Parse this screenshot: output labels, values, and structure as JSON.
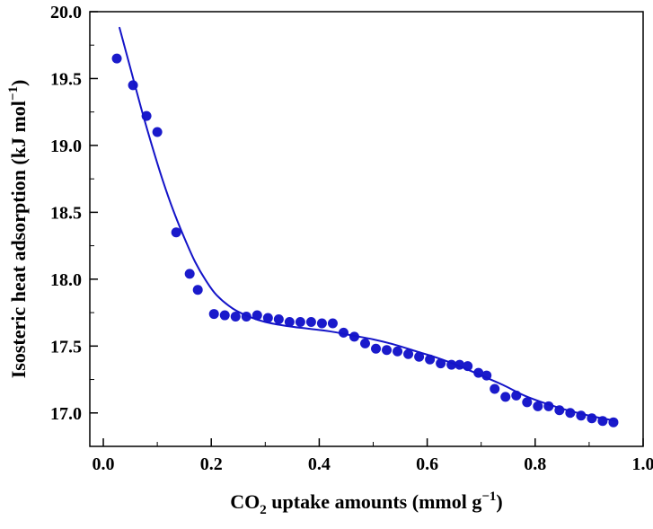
{
  "page": {
    "background": "#ffffff"
  },
  "chart_data": {
    "type": "scatter",
    "title": "",
    "xlabel": "CO2 uptake amounts (mmol g−1)",
    "ylabel": "Isosteric heat adsorption (kJ mol−1)",
    "xlabel_parts": [
      {
        "text": "CO"
      },
      {
        "text": "2",
        "script": "sub"
      },
      {
        "text": " uptake amounts (mmol g"
      },
      {
        "text": "−1",
        "script": "sup"
      },
      {
        "text": ")"
      }
    ],
    "ylabel_parts": [
      {
        "text": "Isosteric heat adsorption (kJ mol"
      },
      {
        "text": "−1",
        "script": "sup"
      },
      {
        "text": ")"
      }
    ],
    "xlim": [
      -0.025,
      1.0
    ],
    "ylim": [
      16.75,
      20.0
    ],
    "x_major_ticks": [
      0.0,
      0.2,
      0.4,
      0.6,
      0.8,
      1.0
    ],
    "x_minor_ticks": [
      0.1,
      0.3,
      0.5,
      0.7,
      0.9
    ],
    "y_major_ticks": [
      17.0,
      17.5,
      18.0,
      18.5,
      19.0,
      19.5,
      20.0
    ],
    "y_minor_ticks": [
      17.25,
      17.75,
      18.25,
      18.75,
      19.25,
      19.75
    ],
    "x_tick_decimals": 1,
    "y_tick_decimals": 1,
    "grid": false,
    "legend": "none",
    "frame_color": "#000000",
    "marker_color": "#1a1acb",
    "line_color": "#1414c8",
    "series": [
      {
        "name": "isosteric-heat-points",
        "type": "scatter",
        "points": [
          [
            0.025,
            19.65
          ],
          [
            0.055,
            19.45
          ],
          [
            0.08,
            19.22
          ],
          [
            0.1,
            19.1
          ],
          [
            0.135,
            18.35
          ],
          [
            0.16,
            18.04
          ],
          [
            0.175,
            17.92
          ],
          [
            0.205,
            17.74
          ],
          [
            0.225,
            17.73
          ],
          [
            0.245,
            17.72
          ],
          [
            0.265,
            17.72
          ],
          [
            0.285,
            17.73
          ],
          [
            0.305,
            17.71
          ],
          [
            0.325,
            17.7
          ],
          [
            0.345,
            17.68
          ],
          [
            0.365,
            17.68
          ],
          [
            0.385,
            17.68
          ],
          [
            0.405,
            17.67
          ],
          [
            0.425,
            17.67
          ],
          [
            0.445,
            17.6
          ],
          [
            0.465,
            17.57
          ],
          [
            0.485,
            17.52
          ],
          [
            0.505,
            17.48
          ],
          [
            0.525,
            17.47
          ],
          [
            0.545,
            17.46
          ],
          [
            0.565,
            17.44
          ],
          [
            0.585,
            17.42
          ],
          [
            0.605,
            17.4
          ],
          [
            0.625,
            17.37
          ],
          [
            0.645,
            17.36
          ],
          [
            0.66,
            17.36
          ],
          [
            0.675,
            17.35
          ],
          [
            0.695,
            17.3
          ],
          [
            0.71,
            17.28
          ],
          [
            0.725,
            17.18
          ],
          [
            0.745,
            17.12
          ],
          [
            0.765,
            17.13
          ],
          [
            0.785,
            17.08
          ],
          [
            0.805,
            17.05
          ],
          [
            0.825,
            17.05
          ],
          [
            0.845,
            17.02
          ],
          [
            0.865,
            17.0
          ],
          [
            0.885,
            16.98
          ],
          [
            0.905,
            16.96
          ],
          [
            0.925,
            16.94
          ],
          [
            0.945,
            16.93
          ]
        ]
      },
      {
        "name": "fitted-curve",
        "type": "line",
        "points": [
          [
            0.03,
            19.88
          ],
          [
            0.05,
            19.58
          ],
          [
            0.07,
            19.28
          ],
          [
            0.09,
            19.0
          ],
          [
            0.11,
            18.74
          ],
          [
            0.13,
            18.51
          ],
          [
            0.15,
            18.31
          ],
          [
            0.17,
            18.13
          ],
          [
            0.19,
            17.99
          ],
          [
            0.21,
            17.88
          ],
          [
            0.24,
            17.78
          ],
          [
            0.27,
            17.72
          ],
          [
            0.3,
            17.68
          ],
          [
            0.34,
            17.65
          ],
          [
            0.38,
            17.63
          ],
          [
            0.42,
            17.61
          ],
          [
            0.46,
            17.58
          ],
          [
            0.5,
            17.55
          ],
          [
            0.54,
            17.51
          ],
          [
            0.58,
            17.46
          ],
          [
            0.62,
            17.41
          ],
          [
            0.66,
            17.35
          ],
          [
            0.7,
            17.28
          ],
          [
            0.74,
            17.21
          ],
          [
            0.78,
            17.13
          ],
          [
            0.82,
            17.07
          ],
          [
            0.86,
            17.02
          ],
          [
            0.9,
            16.98
          ],
          [
            0.95,
            16.94
          ]
        ]
      }
    ]
  }
}
